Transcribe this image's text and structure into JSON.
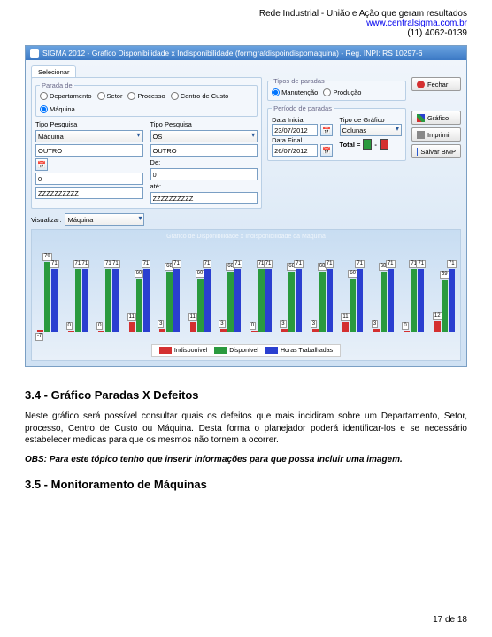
{
  "header": {
    "line1": "Rede Industrial - União e Ação que geram resultados",
    "link": "www.centralsigma.com.br",
    "phone": "(11) 4062-0139"
  },
  "win": {
    "title": "SIGMA 2012 - Grafico Disponibilidade x Indisponibilidade  (formgrafdispoindispomaquina) - Reg. INPI: RS 10297-6"
  },
  "tab": "Selecionar",
  "parada": {
    "legend": "Parada de",
    "opts": [
      "Departamento",
      "Setor",
      "Processo",
      "Centro de Custo",
      "Máquina"
    ],
    "sel": 4
  },
  "left": {
    "tp": "Tipo Pesquisa",
    "v1": "Máquina",
    "v2": "OUTRO",
    "v3": "0",
    "v4": "ZZZZZZZZZZ"
  },
  "right": {
    "tp": "Tipo Pesquisa",
    "v1": "OS",
    "v2": "OUTRO",
    "de": "De:",
    "v3": "0",
    "ate": "até:",
    "v4": "ZZZZZZZZZZ"
  },
  "tipos": {
    "legend": "Tipos de paradas",
    "opts": [
      "Manutenção",
      "Produção"
    ],
    "sel": 0
  },
  "periodo": {
    "legend": "Período de paradas",
    "di": "Data Inicial",
    "div": "23/07/2012",
    "df": "Data Final",
    "dfv": "26/07/2012",
    "tg": "Tipo de Gráfico",
    "tgv": "Colunas",
    "total": "Total ="
  },
  "btns": {
    "fechar": "Fechar",
    "grafico": "Gráfico",
    "imprimir": "Imprimir",
    "salvar": "Salvar BMP"
  },
  "viz": {
    "label": "Visualizar:",
    "value": "Máquina"
  },
  "chart": {
    "title": "Gráfico de Disponibilidade x Indisponibilidade da Máquina",
    "colors": {
      "red": "#d43030",
      "green": "#2a9a3e",
      "blue": "#2a3fd0"
    },
    "groups": [
      {
        "r": -7,
        "g": 79,
        "b": 71
      },
      {
        "r": 0,
        "g": 71,
        "b": 71
      },
      {
        "r": 0,
        "g": 71,
        "b": 71
      },
      {
        "r": 11,
        "g": 60,
        "b": 71
      },
      {
        "r": 3,
        "g": 68,
        "b": 71
      },
      {
        "r": 11,
        "g": 60,
        "b": 71
      },
      {
        "r": 3,
        "g": 68,
        "b": 71
      },
      {
        "r": 0,
        "g": 71,
        "b": 71
      },
      {
        "r": 3,
        "g": 68,
        "b": 71
      },
      {
        "r": 3,
        "g": 68,
        "b": 71
      },
      {
        "r": 11,
        "g": 60,
        "b": 71
      },
      {
        "r": 3,
        "g": 68,
        "b": 71
      },
      {
        "r": 0,
        "g": 71,
        "b": 71
      },
      {
        "r": 12,
        "g": 59,
        "b": 71
      }
    ],
    "legend": [
      "Indisponível",
      "Disponível",
      "Horas Trabalhadas"
    ]
  },
  "doc": {
    "h1": "3.4 - Gráfico Paradas X Defeitos",
    "p1": "Neste gráfico será possível consultar quais os defeitos que mais incidiram sobre um Departamento, Setor, processo, Centro de Custo ou Máquina. Desta forma o planejador poderá identificar-los e se necessário estabelecer medidas para que os mesmos não tornem a ocorrer.",
    "obs": "OBS: Para este tópico tenho que inserir informações para que possa incluir uma imagem.",
    "h2": "3.5 - Monitoramento de Máquinas"
  },
  "page": "17 de 18"
}
